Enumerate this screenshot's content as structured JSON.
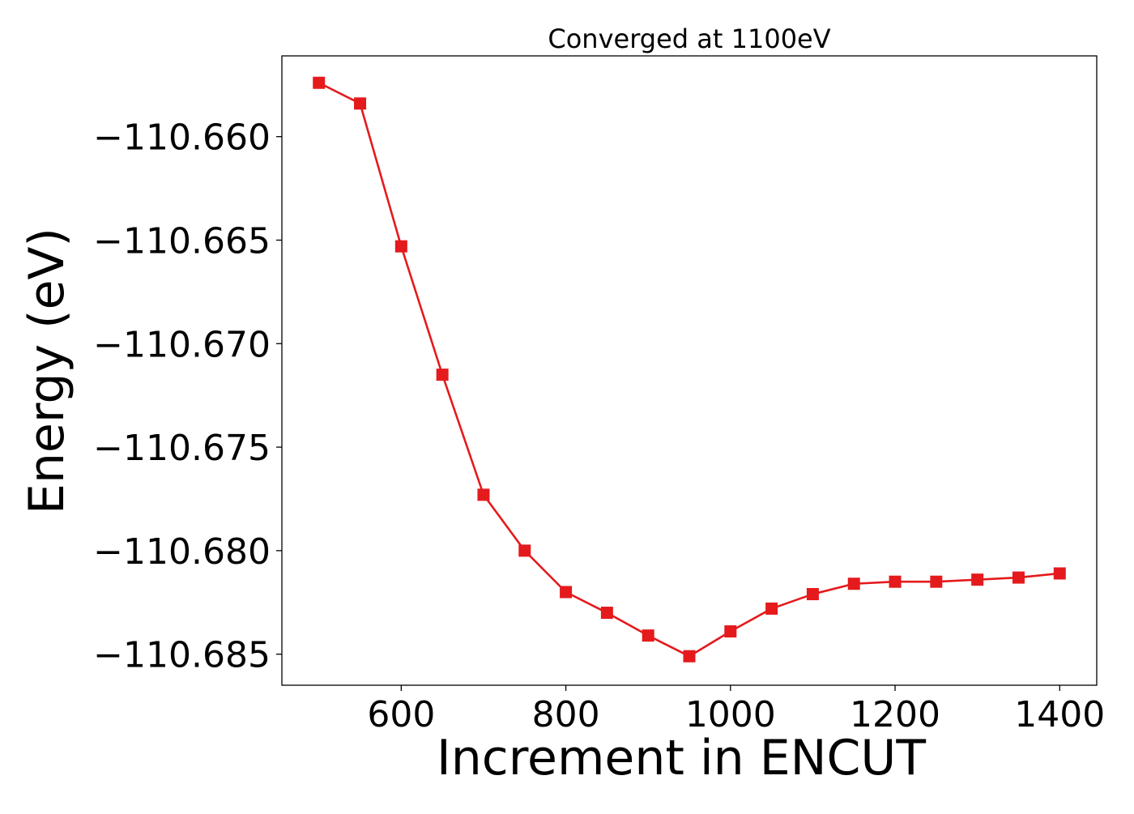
{
  "chart_data": {
    "type": "line",
    "title": "Converged at 1100eV",
    "xlabel": "Increment in ENCUT",
    "ylabel": "Energy (eV)",
    "xlim": [
      455,
      1445
    ],
    "ylim": [
      -110.6865,
      -110.6561
    ],
    "xticks": [
      600,
      800,
      1000,
      1200,
      1400
    ],
    "xtick_labels": [
      "600",
      "800",
      "1000",
      "1200",
      "1400"
    ],
    "yticks": [
      -110.66,
      -110.665,
      -110.67,
      -110.675,
      -110.68,
      -110.685
    ],
    "ytick_labels": [
      "−110.660",
      "−110.665",
      "−110.670",
      "−110.675",
      "−110.680",
      "−110.685"
    ],
    "grid": false,
    "legend": "none",
    "series": [
      {
        "color": "#e41a1c",
        "marker": "square",
        "x": [
          500,
          550,
          600,
          650,
          700,
          750,
          800,
          850,
          900,
          950,
          1000,
          1050,
          1100,
          1150,
          1200,
          1250,
          1300,
          1350,
          1400
        ],
        "y": [
          -110.6574,
          -110.6584,
          -110.6653,
          -110.6715,
          -110.6773,
          -110.68,
          -110.682,
          -110.683,
          -110.6841,
          -110.6851,
          -110.6839,
          -110.6828,
          -110.6821,
          -110.6816,
          -110.6815,
          -110.6815,
          -110.6814,
          -110.6813,
          -110.6811
        ]
      }
    ]
  }
}
